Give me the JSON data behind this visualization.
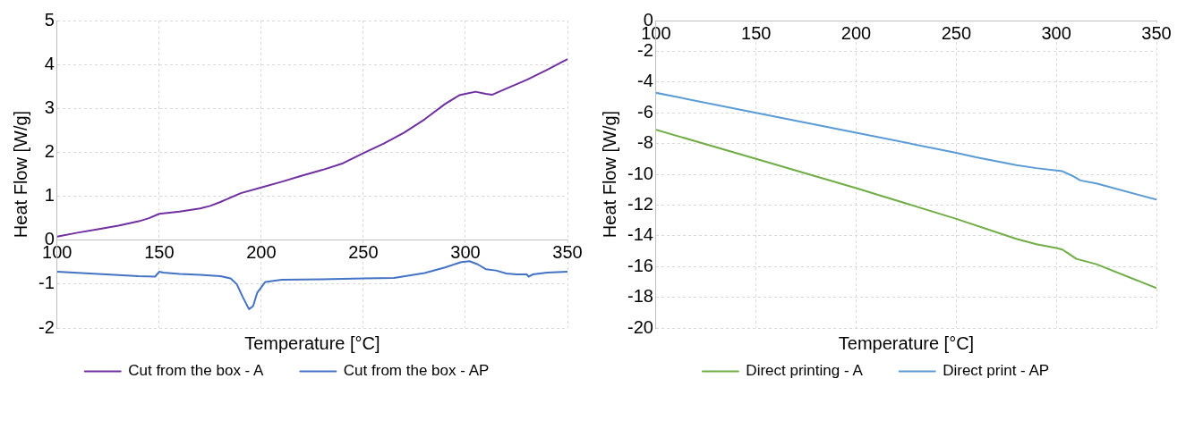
{
  "chart_data": [
    {
      "type": "line",
      "xlabel": "Temperature [°C]",
      "ylabel": "Heat Flow [W/g]",
      "xlim": [
        100,
        350
      ],
      "xticks": [
        100,
        150,
        200,
        250,
        300,
        350
      ],
      "ylim": [
        -2,
        5
      ],
      "yticks": [
        -2,
        -1,
        0,
        1,
        2,
        3,
        4,
        5
      ],
      "grid": true,
      "legend": "bottom",
      "marker": "none",
      "line_style": "solid",
      "series": [
        {
          "name": "Cut from the box - A",
          "color": "#7030a0",
          "x": [
            100,
            110,
            120,
            130,
            140,
            145,
            150,
            160,
            170,
            175,
            180,
            190,
            200,
            210,
            220,
            230,
            240,
            250,
            260,
            270,
            280,
            290,
            297,
            300,
            305,
            310,
            313,
            320,
            330,
            340,
            350
          ],
          "values": [
            0.08,
            0.17,
            0.25,
            0.33,
            0.43,
            0.5,
            0.6,
            0.65,
            0.72,
            0.78,
            0.87,
            1.07,
            1.2,
            1.33,
            1.47,
            1.6,
            1.75,
            1.98,
            2.2,
            2.45,
            2.75,
            3.1,
            3.3,
            3.33,
            3.38,
            3.33,
            3.31,
            3.45,
            3.65,
            3.88,
            4.12
          ]
        },
        {
          "name": "Cut from the box - AP",
          "color": "#4472c4",
          "x": [
            100,
            120,
            140,
            148,
            150,
            152,
            160,
            170,
            180,
            185,
            188,
            191,
            194,
            196,
            198,
            202,
            210,
            230,
            250,
            265,
            280,
            290,
            298,
            302,
            306,
            310,
            315,
            320,
            325,
            330,
            331,
            333,
            340,
            350
          ],
          "values": [
            -0.72,
            -0.77,
            -0.82,
            -0.83,
            -0.72,
            -0.74,
            -0.77,
            -0.79,
            -0.82,
            -0.87,
            -1.0,
            -1.3,
            -1.57,
            -1.5,
            -1.2,
            -0.95,
            -0.9,
            -0.89,
            -0.87,
            -0.86,
            -0.75,
            -0.62,
            -0.5,
            -0.48,
            -0.55,
            -0.66,
            -0.69,
            -0.76,
            -0.78,
            -0.78,
            -0.83,
            -0.78,
            -0.74,
            -0.72
          ]
        }
      ]
    },
    {
      "type": "line",
      "xlabel": "Temperature [°C]",
      "ylabel": "Heat Flow [W/g]",
      "xlim": [
        100,
        350
      ],
      "xticks": [
        100,
        150,
        200,
        250,
        300,
        350
      ],
      "ylim": [
        -20,
        0
      ],
      "yticks": [
        -20,
        -18,
        -16,
        -14,
        -12,
        -10,
        -8,
        -6,
        -4,
        -2,
        0
      ],
      "grid": true,
      "legend": "bottom",
      "marker": "none",
      "line_style": "solid",
      "series": [
        {
          "name": "Direct printing - A",
          "color": "#70ad47",
          "x": [
            100,
            150,
            200,
            250,
            280,
            290,
            300,
            303,
            306,
            310,
            320,
            350
          ],
          "values": [
            -7.1,
            -9.0,
            -10.9,
            -12.9,
            -14.2,
            -14.55,
            -14.8,
            -14.9,
            -15.15,
            -15.5,
            -15.85,
            -17.4
          ]
        },
        {
          "name": "Direct print - AP",
          "color": "#5b9bd5",
          "x": [
            100,
            150,
            200,
            250,
            260,
            280,
            290,
            300,
            303,
            308,
            312,
            320,
            350
          ],
          "values": [
            -4.7,
            -6.0,
            -7.3,
            -8.6,
            -8.9,
            -9.4,
            -9.6,
            -9.75,
            -9.8,
            -10.1,
            -10.4,
            -10.6,
            -11.65
          ]
        }
      ]
    }
  ]
}
